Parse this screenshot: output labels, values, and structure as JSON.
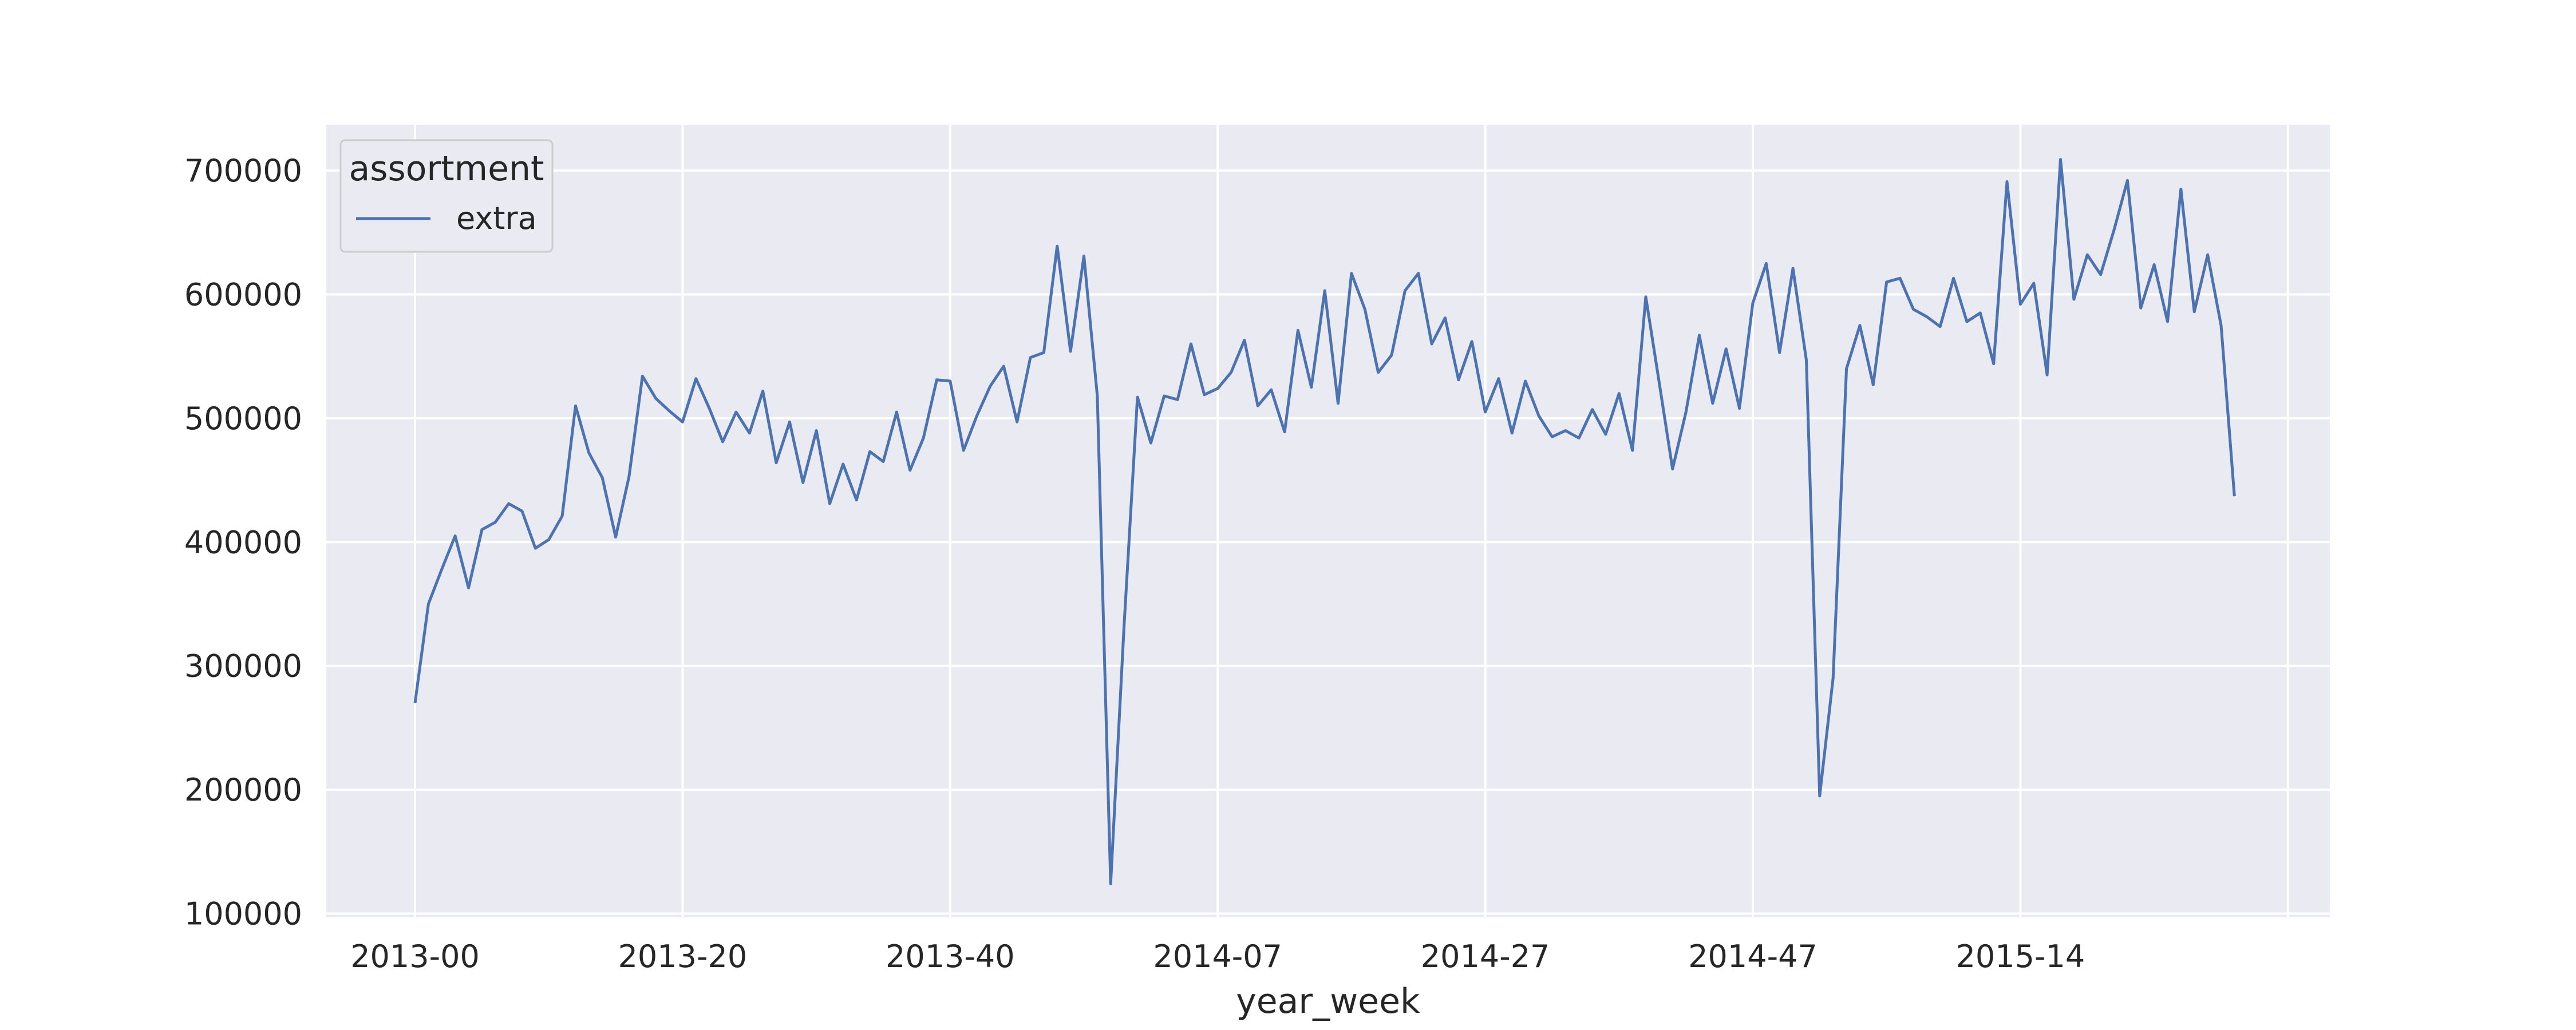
{
  "chart_data": {
    "type": "line",
    "title": "",
    "xlabel": "year_week",
    "ylabel": "",
    "ylim": [
      97000,
      737000
    ],
    "yticks": [
      100000,
      200000,
      300000,
      400000,
      500000,
      600000,
      700000
    ],
    "xticks": [
      "2013-00",
      "2013-20",
      "2013-40",
      "2014-07",
      "2014-27",
      "2014-47",
      "2015-14"
    ],
    "grid": true,
    "legend": {
      "title": "assortment",
      "position": "top-left"
    },
    "series": [
      {
        "name": "extra",
        "color": "#4c72b0",
        "values": [
          270000,
          350000,
          378000,
          405000,
          363000,
          410000,
          416000,
          431000,
          425000,
          395000,
          402000,
          421000,
          510000,
          472000,
          452000,
          404000,
          453000,
          534000,
          516000,
          506000,
          497000,
          532000,
          508000,
          481000,
          505000,
          488000,
          522000,
          464000,
          497000,
          448000,
          490000,
          431000,
          463000,
          434000,
          473000,
          465000,
          505000,
          458000,
          484000,
          531000,
          530000,
          474000,
          502000,
          526000,
          542000,
          497000,
          549000,
          553000,
          639000,
          554000,
          631000,
          518000,
          124000,
          332000,
          517000,
          480000,
          518000,
          515000,
          560000,
          519000,
          524000,
          537000,
          563000,
          510000,
          523000,
          489000,
          571000,
          525000,
          603000,
          512000,
          617000,
          588000,
          537000,
          551000,
          603000,
          617000,
          560000,
          581000,
          531000,
          562000,
          505000,
          532000,
          488000,
          530000,
          502000,
          485000,
          490000,
          484000,
          507000,
          487000,
          520000,
          474000,
          598000,
          529000,
          459000,
          505000,
          567000,
          512000,
          556000,
          508000,
          593000,
          625000,
          553000,
          621000,
          547000,
          195000,
          290000,
          540000,
          575000,
          527000,
          610000,
          613000,
          588000,
          582000,
          574000,
          613000,
          578000,
          585000,
          544000,
          691000,
          592000,
          609000,
          535000,
          709000,
          596000,
          632000,
          616000,
          652000,
          692000,
          589000,
          624000,
          578000,
          685000,
          586000,
          632000,
          575000,
          437000
        ]
      }
    ]
  }
}
